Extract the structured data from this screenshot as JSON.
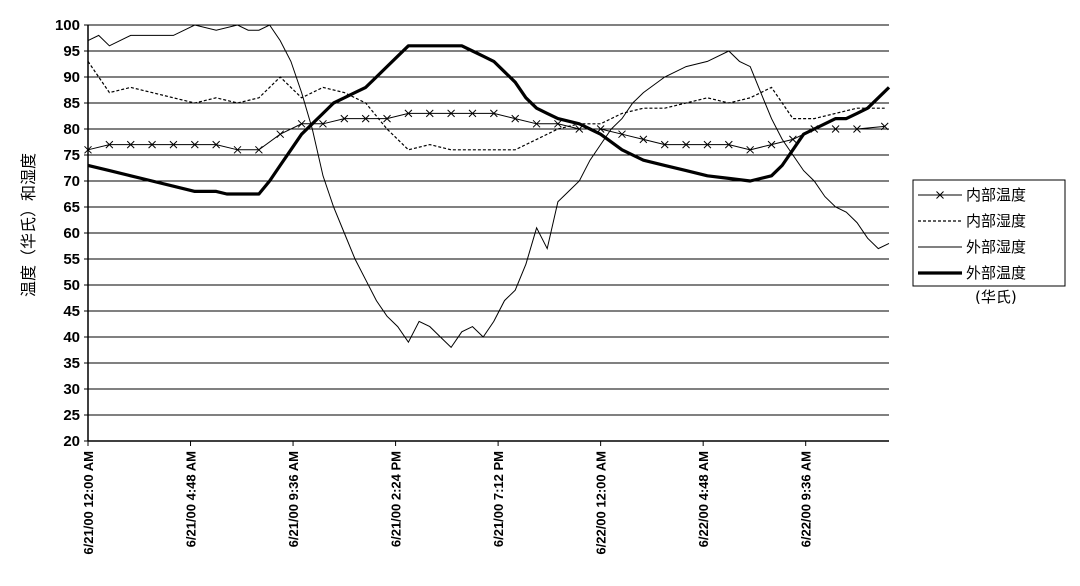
{
  "chart_data": {
    "type": "line",
    "title": "",
    "ylabel": "温度（华氏）和湿度",
    "xlabel": "",
    "ylim": [
      20,
      100
    ],
    "yticks": [
      20,
      25,
      30,
      35,
      40,
      45,
      50,
      55,
      60,
      65,
      70,
      75,
      80,
      85,
      90,
      95,
      100
    ],
    "xlim": [
      0,
      37.5
    ],
    "x_unit": "hours since 6/21/00 12:00 AM",
    "xtick_positions": [
      0,
      4.8,
      9.6,
      14.4,
      19.2,
      24,
      28.8,
      33.6
    ],
    "xtick_labels": [
      "6/21/00 12:00 AM",
      "6/21/00 4:48 AM",
      "6/21/00 9:36 AM",
      "6/21/00 2:24 PM",
      "6/21/00 7:12 PM",
      "6/22/00 12:00 AM",
      "6/22/00 4:48 AM",
      "6/22/00 9:36 AM"
    ],
    "grid": true,
    "legend_position": "right",
    "legend_extra_text": "(华氏)",
    "series": [
      {
        "name": "内部温度",
        "style": "thin-x-marker",
        "color": "#000000",
        "x": [
          0,
          1,
          2,
          3,
          4,
          5,
          6,
          7,
          8,
          9,
          10,
          11,
          12,
          13,
          14,
          15,
          16,
          17,
          18,
          19,
          20,
          21,
          22,
          23,
          24,
          25,
          26,
          27,
          28,
          29,
          30,
          31,
          32,
          33,
          34,
          35,
          36,
          37.3
        ],
        "y": [
          76,
          77,
          77,
          77,
          77,
          77,
          77,
          76,
          76,
          79,
          81,
          81,
          82,
          82,
          82,
          83,
          83,
          83,
          83,
          83,
          82,
          81,
          81,
          80,
          80,
          79,
          78,
          77,
          77,
          77,
          77,
          76,
          77,
          78,
          80,
          80,
          80,
          80.5
        ]
      },
      {
        "name": "内部湿度",
        "style": "dashed",
        "color": "#000000",
        "x": [
          0,
          1,
          2,
          3,
          4,
          5,
          6,
          7,
          8,
          9,
          10,
          11,
          12,
          13,
          14,
          15,
          16,
          17,
          18,
          19,
          20,
          21,
          22,
          23,
          24,
          25,
          26,
          27,
          28,
          29,
          30,
          31,
          32,
          33,
          34,
          35,
          36,
          37.3
        ],
        "y": [
          93,
          87,
          88,
          87,
          86,
          85,
          86,
          85,
          86,
          90,
          86,
          88,
          87,
          85,
          80,
          76,
          77,
          76,
          76,
          76,
          76,
          78,
          80,
          81,
          81,
          83,
          84,
          84,
          85,
          86,
          85,
          86,
          88,
          82,
          82,
          83,
          84,
          84
        ]
      },
      {
        "name": "外部湿度",
        "style": "solid-thin",
        "color": "#000000",
        "x": [
          0,
          0.5,
          1,
          2,
          3,
          4,
          5,
          6,
          7,
          7.5,
          8,
          8.5,
          9,
          9.5,
          10,
          10.5,
          11,
          11.5,
          12,
          12.5,
          13,
          13.5,
          14,
          14.5,
          15,
          15.5,
          16,
          16.5,
          17,
          17.5,
          18,
          18.5,
          19,
          19.5,
          20,
          20.5,
          21,
          21.5,
          22,
          22.5,
          23,
          23.5,
          24,
          24.5,
          25,
          25.5,
          26,
          27,
          28,
          29,
          30,
          30.5,
          31,
          31.5,
          32,
          32.5,
          33,
          33.5,
          34,
          34.5,
          35,
          35.5,
          36,
          36.5,
          37,
          37.5
        ],
        "y": [
          97,
          98,
          96,
          98,
          98,
          98,
          100,
          99,
          100,
          99,
          99,
          100,
          97,
          93,
          87,
          80,
          71,
          65,
          60,
          55,
          51,
          47,
          44,
          42,
          39,
          43,
          42,
          40,
          38,
          41,
          42,
          40,
          43,
          47,
          49,
          54,
          61,
          57,
          66,
          68,
          70,
          74,
          77,
          80,
          82,
          85,
          87,
          90,
          92,
          93,
          95,
          93,
          92,
          87,
          82,
          78,
          75,
          72,
          70,
          67,
          65,
          64,
          62,
          59,
          57,
          58
        ]
      },
      {
        "name": "外部温度",
        "style": "solid-thick",
        "color": "#000000",
        "x": [
          0,
          1,
          2,
          3,
          4,
          5,
          6,
          6.5,
          7,
          7.5,
          8,
          8.5,
          9,
          9.5,
          10,
          10.5,
          11,
          11.5,
          12,
          12.5,
          13,
          13.5,
          14,
          14.5,
          15,
          15.5,
          16,
          16.5,
          17,
          17.5,
          18,
          18.5,
          19,
          19.5,
          20,
          20.5,
          21,
          21.5,
          22,
          22.5,
          23,
          23.5,
          24,
          25,
          26,
          27,
          28,
          29,
          30,
          31,
          32,
          32.5,
          33,
          33.5,
          34,
          34.5,
          35,
          35.5,
          36,
          36.5,
          37,
          37.5
        ],
        "y": [
          73,
          72,
          71,
          70,
          69,
          68,
          68,
          67.5,
          67.5,
          67.5,
          67.5,
          70,
          73,
          76,
          79,
          81,
          83,
          85,
          86,
          87,
          88,
          90,
          92,
          94,
          96,
          96,
          96,
          96,
          96,
          96,
          95,
          94,
          93,
          91,
          89,
          86,
          84,
          83,
          82,
          81.5,
          81,
          80,
          79,
          76,
          74,
          73,
          72,
          71,
          70.5,
          70,
          71,
          73,
          76,
          79,
          80,
          81,
          82,
          82,
          83,
          84,
          86,
          88
        ]
      }
    ]
  }
}
